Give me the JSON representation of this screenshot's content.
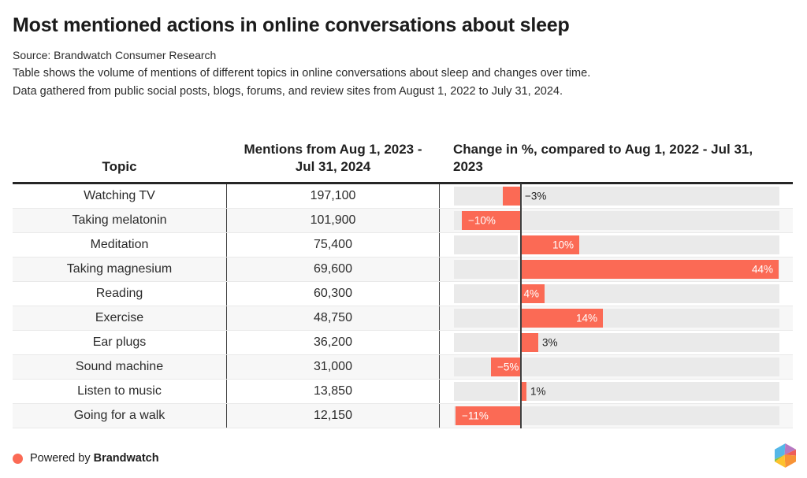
{
  "header": {
    "title": "Most mentioned actions in online conversations about sleep",
    "source": "Source: Brandwatch Consumer Research",
    "description_line1": "Table shows the volume of mentions of different topics in online conversations about sleep and changes over time.",
    "description_line2": "Data gathered from public social posts, blogs, forums, and review sites from August 1, 2022 to July 31, 2024."
  },
  "table": {
    "columns": [
      "Topic",
      "Mentions from Aug 1, 2023 - Jul 31, 2024",
      "Change in %, compared to Aug 1, 2022 - Jul 31, 2023"
    ],
    "rows": [
      {
        "topic": "Watching TV",
        "mentions": "197,100",
        "change_pct": -3,
        "change_label": "−3%"
      },
      {
        "topic": "Taking melatonin",
        "mentions": "101,900",
        "change_pct": -10,
        "change_label": "−10%"
      },
      {
        "topic": "Meditation",
        "mentions": "75,400",
        "change_pct": 10,
        "change_label": "10%"
      },
      {
        "topic": "Taking magnesium",
        "mentions": "69,600",
        "change_pct": 44,
        "change_label": "44%"
      },
      {
        "topic": "Reading",
        "mentions": "60,300",
        "change_pct": 4,
        "change_label": "4%"
      },
      {
        "topic": "Exercise",
        "mentions": "48,750",
        "change_pct": 14,
        "change_label": "14%"
      },
      {
        "topic": "Ear plugs",
        "mentions": "36,200",
        "change_pct": 3,
        "change_label": "3%"
      },
      {
        "topic": "Sound machine",
        "mentions": "31,000",
        "change_pct": -5,
        "change_label": "−5%"
      },
      {
        "topic": "Listen to music",
        "mentions": "13,850",
        "change_pct": 1,
        "change_label": "1%"
      },
      {
        "topic": "Going for a walk",
        "mentions": "12,150",
        "change_pct": -11,
        "change_label": "−11%"
      }
    ]
  },
  "chart_data": {
    "type": "bar",
    "orientation": "horizontal",
    "title": "Most mentioned actions in online conversations about sleep",
    "categories": [
      "Watching TV",
      "Taking melatonin",
      "Meditation",
      "Taking magnesium",
      "Reading",
      "Exercise",
      "Ear plugs",
      "Sound machine",
      "Listen to music",
      "Going for a walk"
    ],
    "series": [
      {
        "name": "Mentions from Aug 1, 2023 - Jul 31, 2024",
        "values": [
          197100,
          101900,
          75400,
          69600,
          60300,
          48750,
          36200,
          31000,
          13850,
          12150
        ]
      },
      {
        "name": "Change in %, compared to Aug 1, 2022 - Jul 31, 2023",
        "values": [
          -3,
          -10,
          10,
          44,
          4,
          14,
          3,
          -5,
          1,
          -11
        ]
      }
    ],
    "xlim": [
      -11,
      44
    ],
    "grid": false,
    "legend": "none"
  },
  "footer": {
    "powered_by": "Powered by",
    "brand": "Brandwatch"
  },
  "colors": {
    "bar": "#fb6a55",
    "track": "#eaeaea",
    "alt_row": "#f7f7f7",
    "axis_line": "#3f3f3f",
    "top_border": "#262626",
    "logo_blue": "#55b7e8",
    "logo_purple": "#b678c2",
    "logo_coral": "#ef5e57",
    "logo_orange": "#f79336",
    "logo_yellow": "#fdc22d",
    "logo_green": "#82c341"
  }
}
